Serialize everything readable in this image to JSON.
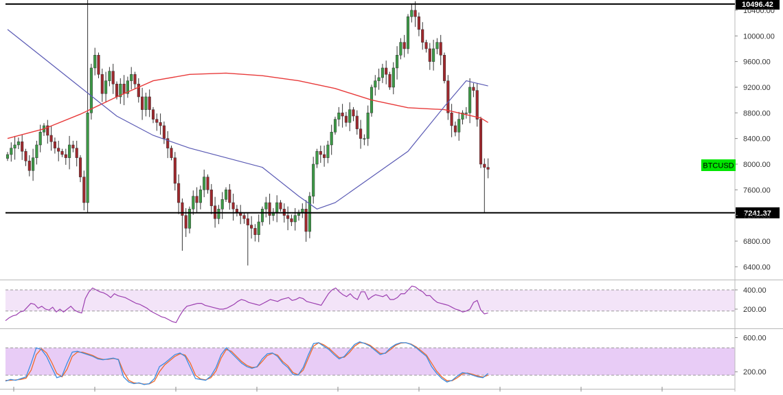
{
  "chart_data": {
    "type": "candlestick",
    "symbol": "BTCUSD",
    "colors": {
      "up": "#3c9a46",
      "down": "#a0282d",
      "sma_short": "#e83a3a",
      "sma_long": "#5a5ab4",
      "rsi": "#9c3fb0",
      "rsi_band": "#f3e4f8",
      "stoch_k": "#3b8de0",
      "stoch_d": "#f06a2a",
      "stoch_band": "#e8ccf6",
      "symbol_badge": "#00e600",
      "level_label_bg": "#000000"
    },
    "price_axis": {
      "ylim": [
        6200,
        10560
      ],
      "ticks": [
        "10400.00",
        "10000.00",
        "9600.00",
        "9200.00",
        "8800.00",
        "8400.00",
        "8000.00",
        "7600.00",
        "7200.00",
        "6800.00",
        "6400.00"
      ]
    },
    "levels": [
      {
        "value": 10496.42,
        "label": "10496.42"
      },
      {
        "value": 7241.37,
        "label": "7241.37"
      }
    ],
    "closes": [
      8150,
      8250,
      8300,
      8350,
      8200,
      8050,
      7900,
      8100,
      8300,
      8500,
      8600,
      8450,
      8350,
      8250,
      8200,
      8150,
      8100,
      8300,
      8250,
      8100,
      7800,
      7400,
      8800,
      9500,
      9700,
      9400,
      9100,
      9300,
      9450,
      9250,
      9050,
      9250,
      9100,
      9300,
      9400,
      9250,
      9050,
      8850,
      9050,
      8850,
      8700,
      8650,
      8600,
      8400,
      8250,
      8100,
      7700,
      7400,
      7200,
      7000,
      7300,
      7500,
      7400,
      7600,
      7800,
      7600,
      7350,
      7150,
      7300,
      7450,
      7600,
      7400,
      7300,
      7250,
      7200,
      7150,
      7050,
      7000,
      6900,
      7100,
      7300,
      7400,
      7200,
      7250,
      7400,
      7300,
      7200,
      7150,
      7100,
      7200,
      7250,
      7300,
      6950,
      7500,
      8000,
      8200,
      8150,
      8100,
      8300,
      8500,
      8700,
      8800,
      8750,
      8650,
      8850,
      8750,
      8550,
      8400,
      8400,
      8800,
      9200,
      9300,
      9350,
      9500,
      9400,
      9200,
      9500,
      9700,
      9900,
      9800,
      10300,
      10400,
      10300,
      10100,
      9900,
      9800,
      9600,
      9800,
      9900,
      9700,
      9300,
      8800,
      8600,
      8500,
      8700,
      8800,
      8800,
      9200,
      9150,
      8700,
      8000,
      7950,
      7920
    ],
    "sma_short": [
      [
        0,
        8400
      ],
      [
        10,
        8550
      ],
      [
        20,
        8780
      ],
      [
        30,
        9050
      ],
      [
        40,
        9300
      ],
      [
        50,
        9400
      ],
      [
        60,
        9420
      ],
      [
        70,
        9380
      ],
      [
        80,
        9300
      ],
      [
        90,
        9180
      ],
      [
        100,
        9000
      ],
      [
        110,
        8880
      ],
      [
        120,
        8850
      ],
      [
        130,
        8720
      ],
      [
        132,
        8650
      ]
    ],
    "sma_long": [
      [
        0,
        10100
      ],
      [
        10,
        9650
      ],
      [
        20,
        9200
      ],
      [
        30,
        8750
      ],
      [
        40,
        8450
      ],
      [
        50,
        8250
      ],
      [
        60,
        8100
      ],
      [
        70,
        7950
      ],
      [
        80,
        7500
      ],
      [
        85,
        7300
      ],
      [
        90,
        7400
      ],
      [
        100,
        7800
      ],
      [
        110,
        8200
      ],
      [
        120,
        8900
      ],
      [
        126,
        9300
      ],
      [
        132,
        9220
      ]
    ],
    "rsi": {
      "ticks": [
        "400.00",
        "200.00"
      ],
      "ylim": [
        0,
        500
      ],
      "band": [
        180,
        400
      ],
      "values": [
        80,
        110,
        130,
        140,
        170,
        180,
        220,
        260,
        250,
        210,
        230,
        200,
        190,
        220,
        170,
        200,
        170,
        200,
        230,
        190,
        170,
        160,
        310,
        380,
        420,
        400,
        380,
        370,
        350,
        320,
        360,
        340,
        330,
        320,
        300,
        280,
        260,
        250,
        230,
        210,
        180,
        160,
        140,
        120,
        110,
        90,
        70,
        60,
        130,
        190,
        230,
        240,
        250,
        260,
        260,
        240,
        230,
        220,
        210,
        200,
        200,
        210,
        230,
        250,
        280,
        300,
        290,
        270,
        260,
        250,
        240,
        260,
        280,
        300,
        290,
        280,
        300,
        310,
        320,
        290,
        300,
        320,
        310,
        280,
        270,
        260,
        250,
        240,
        300,
        360,
        400,
        420,
        380,
        350,
        330,
        360,
        320,
        300,
        380,
        380,
        300,
        330,
        350,
        340,
        330,
        350,
        300,
        300,
        320,
        360,
        360,
        400,
        440,
        430,
        400,
        380,
        340,
        340,
        300,
        270,
        260,
        250,
        240,
        220,
        200,
        190,
        170,
        180,
        200,
        270,
        290,
        190,
        150,
        160
      ]
    },
    "stochastic": {
      "ticks": [
        "600.00",
        "200.00"
      ],
      "ylim": [
        0,
        700
      ],
      "band": [
        160,
        480
      ],
      "k": [
        90,
        110,
        100,
        120,
        140,
        300,
        480,
        460,
        380,
        250,
        130,
        150,
        300,
        430,
        440,
        420,
        400,
        380,
        350,
        340,
        350,
        360,
        340,
        140,
        80,
        60,
        70,
        50,
        60,
        120,
        260,
        300,
        350,
        400,
        420,
        380,
        250,
        120,
        110,
        100,
        150,
        250,
        400,
        480,
        420,
        360,
        300,
        260,
        240,
        260,
        350,
        410,
        420,
        380,
        300,
        250,
        170,
        160,
        250,
        400,
        530,
        540,
        500,
        460,
        400,
        350,
        380,
        450,
        520,
        550,
        530,
        500,
        450,
        400,
        420,
        480,
        520,
        540,
        540,
        520,
        480,
        430,
        380,
        260,
        180,
        120,
        80,
        100,
        150,
        190,
        180,
        160,
        140,
        130,
        180
      ],
      "d": [
        100,
        100,
        105,
        110,
        125,
        220,
        400,
        470,
        420,
        310,
        180,
        140,
        230,
        380,
        430,
        430,
        410,
        390,
        360,
        345,
        345,
        355,
        345,
        200,
        100,
        70,
        65,
        55,
        58,
        90,
        200,
        280,
        330,
        380,
        410,
        395,
        300,
        160,
        115,
        105,
        130,
        210,
        360,
        460,
        440,
        380,
        320,
        275,
        250,
        255,
        320,
        390,
        415,
        395,
        320,
        270,
        190,
        165,
        220,
        360,
        500,
        540,
        515,
        475,
        420,
        365,
        370,
        425,
        500,
        540,
        535,
        510,
        465,
        415,
        415,
        460,
        510,
        535,
        540,
        525,
        490,
        445,
        395,
        300,
        205,
        140,
        95,
        95,
        130,
        175,
        185,
        170,
        150,
        138,
        160
      ]
    },
    "x_axis_tick_count": 9
  }
}
